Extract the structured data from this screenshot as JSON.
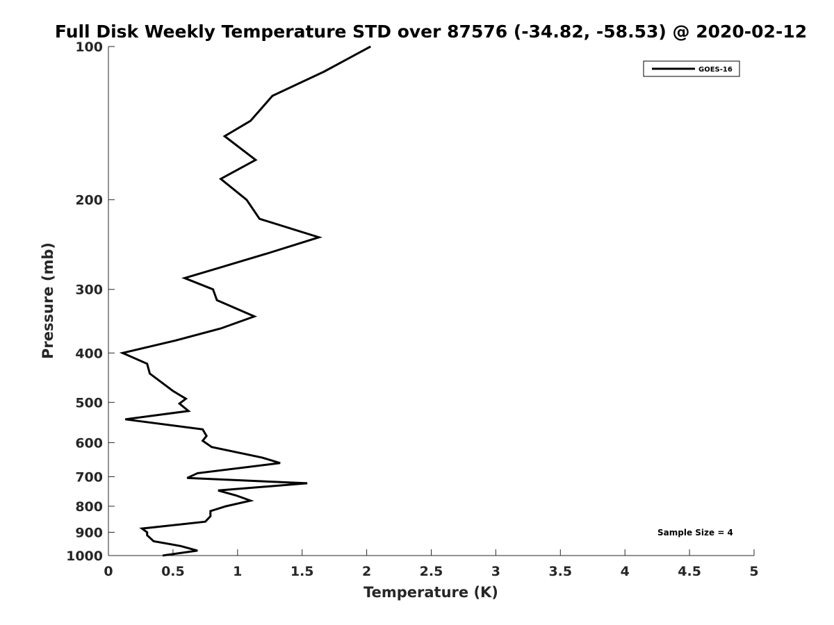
{
  "chart_data": {
    "type": "line",
    "title": "Full Disk Weekly Temperature STD over 87576 (-34.82, -58.53) @ 2020-02-12",
    "xlabel": "Temperature (K)",
    "ylabel": "Pressure (mb)",
    "xlim": [
      0,
      5
    ],
    "ylim": [
      100,
      1000
    ],
    "y_scale": "log",
    "y_reversed": true,
    "x_ticks": [
      0,
      0.5,
      1,
      1.5,
      2,
      2.5,
      3,
      3.5,
      4,
      4.5,
      5
    ],
    "x_tick_labels": [
      "0",
      "0.5",
      "1",
      "1.5",
      "2",
      "2.5",
      "3",
      "3.5",
      "4",
      "4.5",
      "5"
    ],
    "y_ticks": [
      100,
      200,
      300,
      400,
      500,
      600,
      700,
      800,
      900,
      1000
    ],
    "y_tick_labels": [
      "100",
      "200",
      "300",
      "400",
      "500",
      "600",
      "700",
      "800",
      "900",
      "1000"
    ],
    "grid": false,
    "legend_position": "top-right",
    "annotation": "Sample Size = 4",
    "series": [
      {
        "name": "GOES-16",
        "color": "#000000",
        "points": [
          [
            2.03,
            100
          ],
          [
            1.67,
            112
          ],
          [
            1.27,
            125
          ],
          [
            1.1,
            140
          ],
          [
            0.9,
            150
          ],
          [
            1.14,
            167
          ],
          [
            0.87,
            182
          ],
          [
            1.07,
            200
          ],
          [
            1.17,
            218
          ],
          [
            1.63,
            237
          ],
          [
            1.23,
            255
          ],
          [
            0.88,
            271
          ],
          [
            0.59,
            285
          ],
          [
            0.81,
            300
          ],
          [
            0.84,
            315
          ],
          [
            1.13,
            339
          ],
          [
            0.87,
            358
          ],
          [
            0.52,
            378
          ],
          [
            0.11,
            400
          ],
          [
            0.3,
            420
          ],
          [
            0.32,
            439
          ],
          [
            0.5,
            475
          ],
          [
            0.6,
            492
          ],
          [
            0.55,
            503
          ],
          [
            0.62,
            520
          ],
          [
            0.13,
            540
          ],
          [
            0.73,
            565
          ],
          [
            0.76,
            582
          ],
          [
            0.73,
            595
          ],
          [
            0.8,
            612
          ],
          [
            1.19,
            642
          ],
          [
            1.33,
            658
          ],
          [
            0.69,
            689
          ],
          [
            0.61,
            704
          ],
          [
            1.54,
            721
          ],
          [
            0.85,
            745
          ],
          [
            0.99,
            762
          ],
          [
            1.1,
            780
          ],
          [
            0.91,
            800
          ],
          [
            0.79,
            818
          ],
          [
            0.79,
            837
          ],
          [
            0.75,
            858
          ],
          [
            0.26,
            885
          ],
          [
            0.3,
            900
          ],
          [
            0.3,
            912
          ],
          [
            0.35,
            937
          ],
          [
            0.56,
            958
          ],
          [
            0.69,
            978
          ],
          [
            0.42,
            1000
          ]
        ]
      }
    ]
  }
}
